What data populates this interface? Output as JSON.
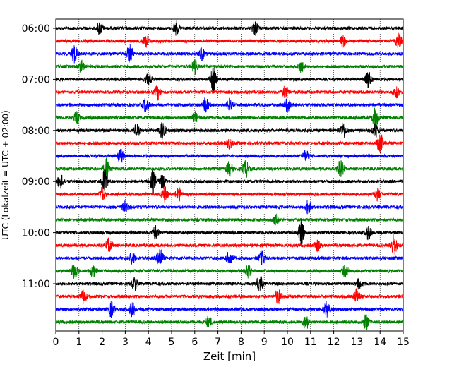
{
  "chart_data": {
    "type": "line",
    "subtype": "helicorder",
    "xlabel": "Zeit  [min]",
    "ylabel": "UTC (Lokalzeit = UTC + 02:00)",
    "xlim": [
      0,
      15
    ],
    "xticks": [
      0,
      1,
      2,
      3,
      4,
      5,
      6,
      7,
      8,
      9,
      10,
      11,
      12,
      13,
      14,
      15
    ],
    "xtick_labels": [
      "0",
      "1",
      "2",
      "3",
      "4",
      "5",
      "6",
      "7",
      "8",
      "9",
      "10",
      "11",
      "12",
      "13",
      "14",
      "15"
    ],
    "ytick_labels": [
      "06:00",
      "07:00",
      "08:00",
      "09:00",
      "10:00",
      "11:00"
    ],
    "ytick_trace_index": [
      0,
      4,
      8,
      12,
      16,
      20
    ],
    "vertical_grid": "dotted at every minute",
    "trace_minutes": 15,
    "trace_count": 24,
    "trace_color_cycle": [
      "#000000",
      "#ff0000",
      "#0000ff",
      "#008000"
    ],
    "bursts": [
      [
        [
          1.9,
          0.9
        ],
        [
          5.2,
          1.0
        ],
        [
          8.6,
          1.0
        ]
      ],
      [
        [
          3.9,
          0.8
        ],
        [
          12.4,
          0.8
        ],
        [
          14.8,
          0.9
        ]
      ],
      [
        [
          0.8,
          1.2
        ],
        [
          3.2,
          1.3
        ],
        [
          6.3,
          0.9
        ]
      ],
      [
        [
          1.1,
          0.8
        ],
        [
          6.0,
          1.0
        ],
        [
          10.6,
          0.8
        ]
      ],
      [
        [
          4.0,
          0.8
        ],
        [
          6.8,
          1.6
        ],
        [
          13.5,
          1.2
        ]
      ],
      [
        [
          4.4,
          1.0
        ],
        [
          9.9,
          0.8
        ],
        [
          14.7,
          0.7
        ]
      ],
      [
        [
          3.9,
          1.0
        ],
        [
          6.5,
          1.2
        ],
        [
          7.5,
          0.8
        ],
        [
          10.0,
          1.0
        ]
      ],
      [
        [
          0.9,
          0.8
        ],
        [
          6.0,
          0.8
        ],
        [
          13.8,
          1.4
        ]
      ],
      [
        [
          3.5,
          1.0
        ],
        [
          4.6,
          1.4
        ],
        [
          12.4,
          1.2
        ],
        [
          13.8,
          0.9
        ]
      ],
      [
        [
          14.0,
          1.5
        ],
        [
          7.5,
          0.7
        ]
      ],
      [
        [
          2.8,
          1.0
        ],
        [
          10.8,
          0.8
        ]
      ],
      [
        [
          2.2,
          1.5
        ],
        [
          7.5,
          1.0
        ],
        [
          8.2,
          1.2
        ],
        [
          12.3,
          1.3
        ]
      ],
      [
        [
          0.2,
          1.0
        ],
        [
          2.1,
          1.8
        ],
        [
          4.2,
          1.6
        ],
        [
          4.6,
          1.0
        ]
      ],
      [
        [
          2.0,
          0.9
        ],
        [
          4.7,
          1.1
        ],
        [
          5.3,
          1.0
        ],
        [
          13.9,
          0.8
        ]
      ],
      [
        [
          3.0,
          0.8
        ],
        [
          10.9,
          0.9
        ]
      ],
      [
        [
          9.5,
          0.7
        ]
      ],
      [
        [
          4.3,
          0.9
        ],
        [
          10.6,
          1.7
        ],
        [
          13.5,
          0.9
        ]
      ],
      [
        [
          2.3,
          1.1
        ],
        [
          11.3,
          0.8
        ],
        [
          14.6,
          1.5
        ]
      ],
      [
        [
          3.3,
          0.9
        ],
        [
          4.5,
          1.6
        ],
        [
          7.5,
          1.0
        ],
        [
          8.9,
          1.0
        ]
      ],
      [
        [
          0.8,
          1.0
        ],
        [
          1.6,
          0.8
        ],
        [
          8.3,
          0.9
        ],
        [
          12.5,
          0.8
        ]
      ],
      [
        [
          3.4,
          0.9
        ],
        [
          8.8,
          1.2
        ],
        [
          13.1,
          0.8
        ]
      ],
      [
        [
          1.2,
          1.0
        ],
        [
          9.6,
          1.0
        ],
        [
          13.0,
          1.1
        ]
      ],
      [
        [
          2.4,
          1.1
        ],
        [
          3.3,
          1.0
        ],
        [
          11.7,
          1.0
        ]
      ],
      [
        [
          6.6,
          0.8
        ],
        [
          10.8,
          1.0
        ],
        [
          13.4,
          1.0
        ]
      ]
    ]
  }
}
